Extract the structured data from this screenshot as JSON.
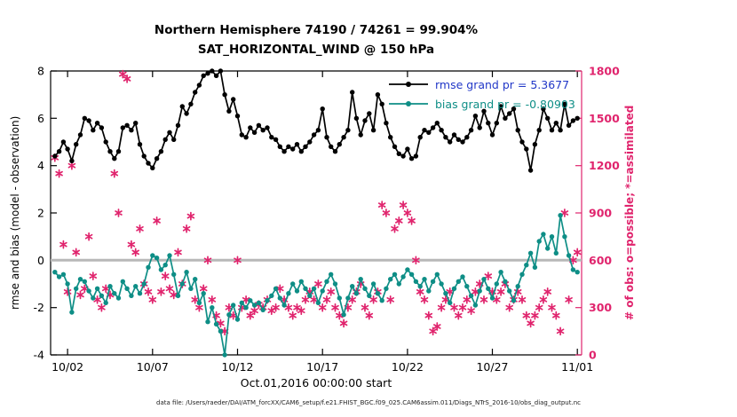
{
  "figure": {
    "title_line1": "Northern Hemisphere 74190 / 74261 = 99.904%",
    "title_line2": "SAT_HORIZONTAL_WIND @ 150 hPa",
    "left_ylabel": "rmse and bias (model - observation)",
    "right_ylabel": "# of obs: o=possible; *=assimilated",
    "xlabel": "Oct.01,2016 00:00:00 start",
    "caption": "data file: /Users/raeder/DAI/ATM_forcXX/CAM6_setup/f.e21.FHIST_BGC.f09_025.CAM6assim.011/Diags_NTrS_2016-10/obs_diag_output.nc",
    "legend": [
      {
        "label": "rmse grand pr = 5.3677",
        "line_color": "#000000",
        "text_color": "#2238c8"
      },
      {
        "label": "bias grand pr = -0.80903",
        "line_color": "#0e8e86",
        "text_color": "#0e8e86"
      }
    ]
  },
  "colors": {
    "rmse": "#000000",
    "bias": "#0e8e86",
    "obs": "#e0246d",
    "right_axis": "#e0246d",
    "zero_line": "#b8b8b8"
  },
  "chart_data": {
    "type": "line",
    "title": "Northern Hemisphere 74190 / 74261 = 99.904% | SAT_HORIZONTAL_WIND @ 150 hPa",
    "xlabel": "Oct.01,2016 00:00:00 start",
    "ylabel_left": "rmse and bias (model - observation)",
    "ylabel_right": "# of obs: o=possible; *=assimilated",
    "grid": false,
    "legend_position": "top-right-inside",
    "xlim": [
      0,
      31.25
    ],
    "left_ylim": [
      -4,
      8
    ],
    "right_ylim": [
      0,
      1800
    ],
    "x_ticks": [
      {
        "value": 1,
        "label": "10/02"
      },
      {
        "value": 6,
        "label": "10/07"
      },
      {
        "value": 11,
        "label": "10/12"
      },
      {
        "value": 16,
        "label": "10/17"
      },
      {
        "value": 21,
        "label": "10/22"
      },
      {
        "value": 26,
        "label": "10/27"
      },
      {
        "value": 31,
        "label": "11/01"
      }
    ],
    "left_y_ticks": [
      -4,
      -2,
      0,
      2,
      4,
      6,
      8
    ],
    "right_y_ticks": [
      0,
      300,
      600,
      900,
      1200,
      1500,
      1800
    ],
    "x": {
      "start": 0.25,
      "step": 0.25,
      "count": 124,
      "unit": "days since Oct 01 2016 00:00"
    },
    "zero_line": {
      "y": 0,
      "color": "#b8b8b8"
    },
    "series": [
      {
        "name": "rmse",
        "axis": "left",
        "color": "#000000",
        "marker": "circle",
        "grand_pr": 5.3677,
        "values": [
          4.4,
          4.6,
          5.0,
          4.7,
          4.2,
          4.9,
          5.3,
          6.0,
          5.9,
          5.5,
          5.8,
          5.6,
          5.0,
          4.6,
          4.3,
          4.6,
          5.6,
          5.7,
          5.5,
          5.8,
          4.9,
          4.4,
          4.1,
          3.9,
          4.3,
          4.6,
          5.1,
          5.4,
          5.1,
          5.7,
          6.5,
          6.2,
          6.6,
          7.1,
          7.4,
          7.8,
          7.9,
          8.0,
          7.8,
          8.0,
          7.0,
          6.3,
          6.8,
          6.1,
          5.3,
          5.2,
          5.6,
          5.4,
          5.7,
          5.5,
          5.6,
          5.2,
          5.1,
          4.8,
          4.6,
          4.8,
          4.7,
          4.9,
          4.6,
          4.8,
          5.0,
          5.3,
          5.5,
          6.4,
          5.2,
          4.8,
          4.6,
          4.9,
          5.2,
          5.5,
          7.1,
          6.0,
          5.3,
          5.9,
          6.2,
          5.5,
          7.0,
          6.6,
          5.8,
          5.2,
          4.8,
          4.5,
          4.4,
          4.7,
          4.3,
          4.4,
          5.2,
          5.5,
          5.4,
          5.6,
          5.8,
          5.5,
          5.2,
          5.0,
          5.3,
          5.1,
          5.0,
          5.2,
          5.5,
          6.1,
          5.6,
          6.3,
          5.8,
          5.3,
          5.8,
          6.5,
          6.0,
          6.2,
          6.4,
          5.5,
          5.0,
          4.7,
          3.8,
          4.9,
          5.5,
          6.4,
          6.0,
          5.5,
          5.8,
          5.5,
          6.6,
          5.7,
          5.9,
          6.0
        ]
      },
      {
        "name": "bias",
        "axis": "left",
        "color": "#0e8e86",
        "marker": "circle",
        "grand_pr": -0.80903,
        "values": [
          -0.5,
          -0.7,
          -0.6,
          -1.0,
          -2.2,
          -1.2,
          -0.8,
          -0.9,
          -1.3,
          -1.6,
          -1.2,
          -1.5,
          -1.8,
          -1.1,
          -1.4,
          -1.6,
          -0.9,
          -1.2,
          -1.5,
          -1.1,
          -1.4,
          -1.0,
          -0.3,
          0.2,
          0.1,
          -0.4,
          -0.2,
          0.2,
          -0.6,
          -1.5,
          -1.0,
          -0.5,
          -1.2,
          -0.8,
          -1.8,
          -1.4,
          -2.6,
          -2.0,
          -2.7,
          -3.0,
          -4.0,
          -2.3,
          -1.9,
          -2.5,
          -1.8,
          -2.0,
          -1.7,
          -1.9,
          -1.8,
          -2.1,
          -1.7,
          -1.5,
          -1.2,
          -1.6,
          -1.9,
          -1.4,
          -1.0,
          -1.3,
          -0.9,
          -1.2,
          -1.5,
          -1.2,
          -1.8,
          -1.3,
          -0.9,
          -0.6,
          -1.0,
          -1.6,
          -2.3,
          -1.6,
          -1.1,
          -1.4,
          -0.8,
          -1.2,
          -1.5,
          -1.0,
          -1.4,
          -1.7,
          -1.2,
          -0.8,
          -0.6,
          -1.0,
          -0.7,
          -0.4,
          -0.6,
          -0.9,
          -1.1,
          -0.8,
          -1.3,
          -0.9,
          -0.6,
          -1.0,
          -1.4,
          -1.8,
          -1.2,
          -0.9,
          -0.7,
          -1.1,
          -1.5,
          -1.9,
          -1.3,
          -0.8,
          -1.2,
          -1.6,
          -1.0,
          -0.5,
          -0.9,
          -1.3,
          -1.7,
          -1.1,
          -0.6,
          -0.2,
          0.3,
          -0.3,
          0.8,
          1.1,
          0.5,
          1.0,
          0.3,
          1.9,
          1.0,
          0.2,
          -0.4,
          -0.5
        ]
      },
      {
        "name": "observations_assimilated",
        "axis": "right",
        "color": "#e0246d",
        "marker": "asterisk",
        "values": [
          1250,
          1150,
          700,
          400,
          1200,
          650,
          380,
          420,
          750,
          500,
          350,
          300,
          420,
          380,
          1150,
          900,
          1780,
          1750,
          700,
          650,
          800,
          450,
          400,
          350,
          850,
          400,
          500,
          420,
          380,
          650,
          450,
          800,
          880,
          350,
          300,
          420,
          600,
          350,
          250,
          200,
          150,
          300,
          250,
          600,
          300,
          350,
          250,
          280,
          320,
          300,
          350,
          280,
          300,
          420,
          350,
          300,
          250,
          300,
          280,
          350,
          400,
          350,
          450,
          300,
          350,
          400,
          300,
          250,
          200,
          300,
          350,
          400,
          450,
          300,
          250,
          350,
          400,
          950,
          900,
          350,
          800,
          850,
          950,
          900,
          850,
          600,
          400,
          350,
          250,
          150,
          180,
          300,
          350,
          400,
          300,
          250,
          300,
          350,
          280,
          400,
          450,
          350,
          500,
          400,
          350,
          400,
          450,
          300,
          350,
          400,
          350,
          250,
          200,
          250,
          300,
          350,
          400,
          300,
          250,
          150,
          900,
          350,
          600,
          650
        ]
      }
    ]
  }
}
